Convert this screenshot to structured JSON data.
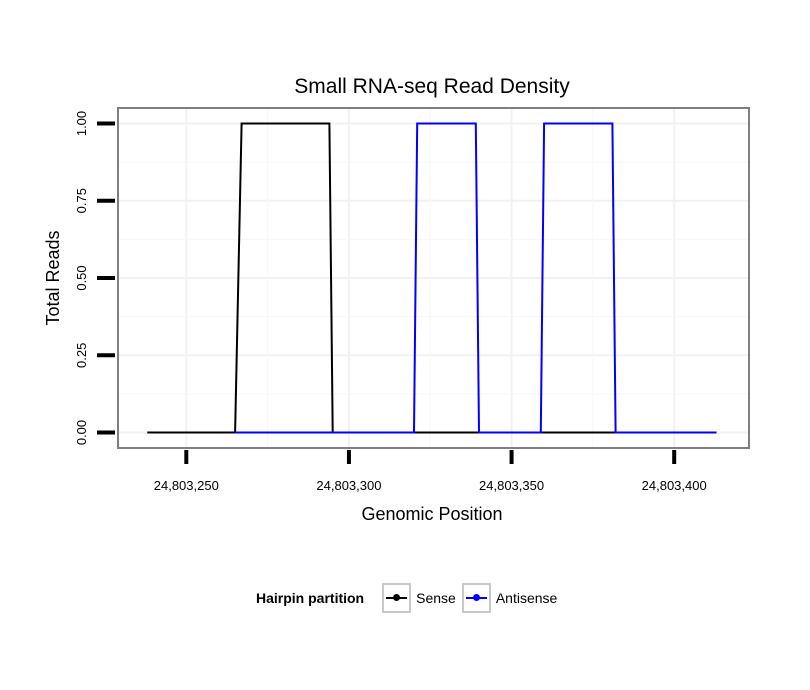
{
  "chart_data": {
    "type": "line",
    "title": "Small RNA-seq Read Density",
    "xlabel": "Genomic Position",
    "ylabel": "Total Reads",
    "xlim": [
      24803229,
      24803423
    ],
    "ylim": [
      -0.05,
      1.05
    ],
    "x_ticks": [
      24803250,
      24803300,
      24803350,
      24803400
    ],
    "x_tick_labels": [
      "24,803,250",
      "24,803,300",
      "24,803,350",
      "24,803,400"
    ],
    "y_ticks": [
      0,
      0.25,
      0.5,
      0.75,
      1
    ],
    "y_tick_labels": [
      "0.00",
      "0.25",
      "0.50",
      "0.75",
      "1.00"
    ],
    "grid": true,
    "legend_position": "bottom",
    "legend_title": "Hairpin partition",
    "series": [
      {
        "name": "Sense",
        "color": "#000000",
        "x": [
          24803238,
          24803265,
          24803267,
          24803294,
          24803295,
          24803413
        ],
        "y": [
          0,
          0,
          1,
          1,
          0,
          0
        ]
      },
      {
        "name": "Antisense",
        "color": "#0000ff",
        "x": [
          24803265,
          24803320,
          24803321,
          24803339,
          24803340,
          24803359,
          24803360,
          24803381,
          24803382,
          24803413
        ],
        "y": [
          0,
          0,
          1,
          1,
          0,
          0,
          1,
          1,
          0,
          0
        ]
      }
    ]
  }
}
